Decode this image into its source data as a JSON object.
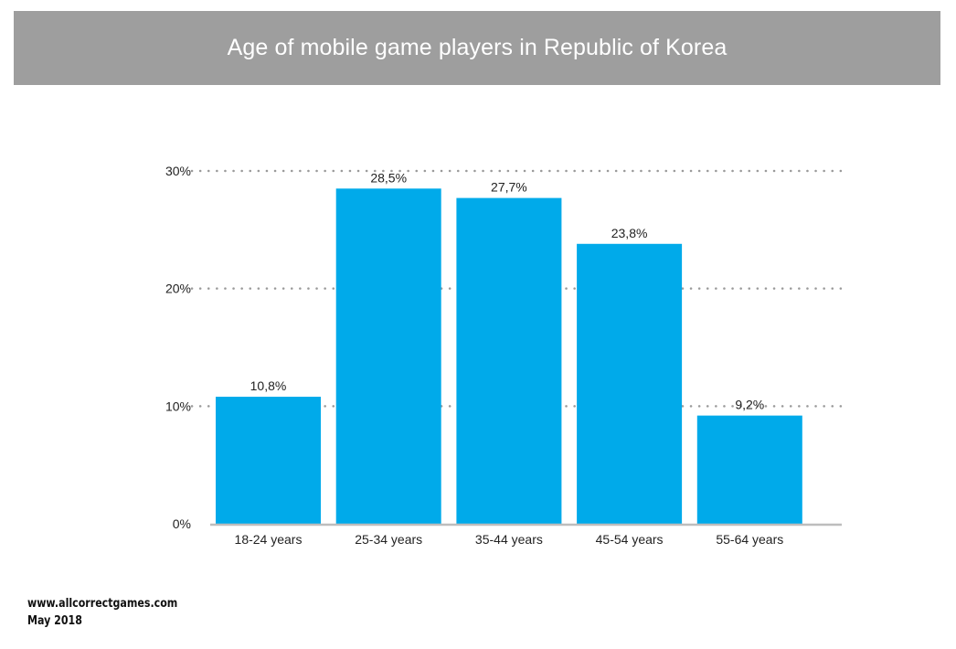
{
  "header": {
    "title": "Age of mobile game players in Republic of Korea"
  },
  "footer": {
    "website": "www.allcorrectgames.com",
    "date": "May 2018"
  },
  "colors": {
    "bar": "#00aaea",
    "title_bg": "#9e9e9e",
    "grid": "#9a9a9a",
    "axis": "#bdbdbd"
  },
  "chart_data": {
    "type": "bar",
    "title": "Age of mobile game players in Republic of Korea",
    "xlabel": "",
    "ylabel": "",
    "categories": [
      "18-24 years",
      "25-34 years",
      "35-44 years",
      "45-54 years",
      "55-64 years"
    ],
    "values": [
      10.8,
      28.5,
      27.7,
      23.8,
      9.2
    ],
    "data_labels": [
      "10,8%",
      "28,5%",
      "27,7%",
      "23,8%",
      "9,2%"
    ],
    "yticks": [
      0,
      10,
      20,
      30
    ],
    "ytick_labels": [
      "0%",
      "10%",
      "20%",
      "30%"
    ],
    "ylim": [
      0,
      30
    ],
    "grid": true,
    "legend": "none"
  }
}
